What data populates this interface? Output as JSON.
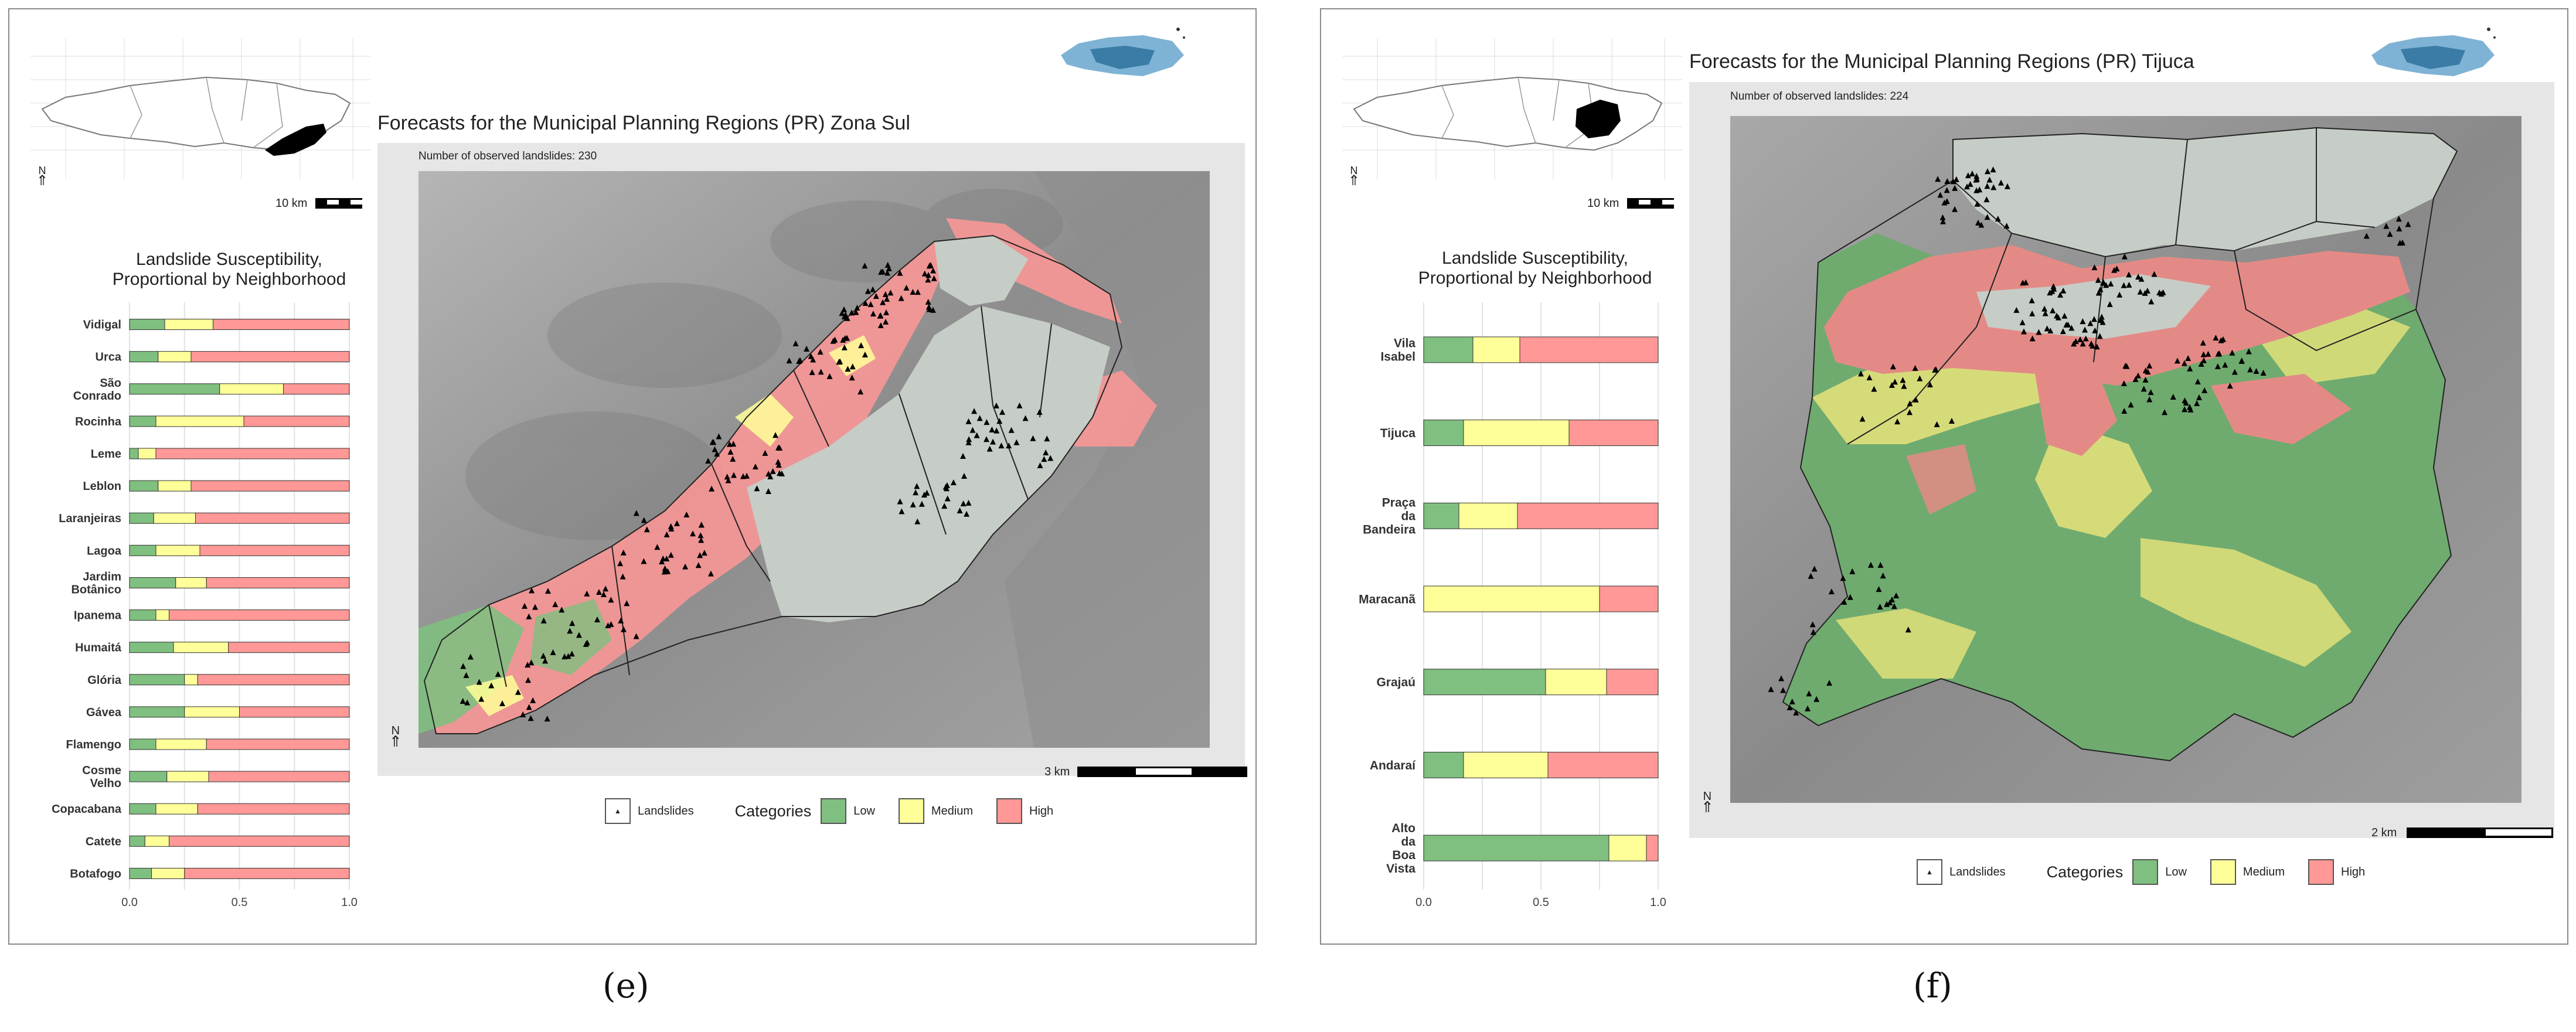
{
  "panels": [
    {
      "id": "e",
      "caption": "(e)",
      "inset_scale": "10 km",
      "map_title": "Forecasts for the Municipal Planning Regions (PR) Zona Sul",
      "observed": "Number of observed landslides: 230",
      "scale": "3 km",
      "north": "N",
      "chart_data": {
        "type": "bar",
        "title": "Landslide Susceptibility, Proportional by Neighborhood",
        "orientation": "horizontal",
        "stacked": true,
        "categories": [
          "Vidigal",
          "Urca",
          "São Conrado",
          "Rocinha",
          "Leme",
          "Leblon",
          "Laranjeiras",
          "Lagoa",
          "Jardim Botânico",
          "Ipanema",
          "Humaitá",
          "Glória",
          "Gávea",
          "Flamengo",
          "Cosme Velho",
          "Copacabana",
          "Catete",
          "Botafogo"
        ],
        "series": [
          {
            "name": "Low",
            "color": "#7fbf7f",
            "values": [
              0.16,
              0.13,
              0.41,
              0.12,
              0.04,
              0.13,
              0.11,
              0.12,
              0.21,
              0.12,
              0.2,
              0.25,
              0.25,
              0.12,
              0.17,
              0.12,
              0.07,
              0.1
            ]
          },
          {
            "name": "Medium",
            "color": "#ffff99",
            "values": [
              0.22,
              0.15,
              0.29,
              0.4,
              0.08,
              0.15,
              0.19,
              0.2,
              0.14,
              0.06,
              0.25,
              0.06,
              0.25,
              0.23,
              0.19,
              0.19,
              0.11,
              0.15
            ]
          },
          {
            "name": "High",
            "color": "#ff9896",
            "values": [
              0.62,
              0.72,
              0.3,
              0.48,
              0.88,
              0.72,
              0.7,
              0.68,
              0.65,
              0.82,
              0.55,
              0.69,
              0.5,
              0.65,
              0.64,
              0.69,
              0.82,
              0.75
            ]
          }
        ],
        "xlim": [
          0,
          1
        ],
        "xticks": [
          "0.0",
          "0.5",
          "1.0"
        ]
      }
    },
    {
      "id": "f",
      "caption": "(f)",
      "inset_scale": "10 km",
      "map_title": "Forecasts for the Municipal Planning Regions (PR) Tijuca",
      "observed": "Number of observed landslides: 224",
      "scale": "2 km",
      "north": "N",
      "chart_data": {
        "type": "bar",
        "title": "Landslide Susceptibility, Proportional by Neighborhood",
        "orientation": "horizontal",
        "stacked": true,
        "categories": [
          "Vila Isabel",
          "Tijuca",
          "Praça da Bandeira",
          "Maracanã",
          "Grajaú",
          "Andaraí",
          "Alto da Boa Vista"
        ],
        "series": [
          {
            "name": "Low",
            "color": "#7fbf7f",
            "values": [
              0.21,
              0.17,
              0.15,
              0.0,
              0.52,
              0.17,
              0.79
            ]
          },
          {
            "name": "Medium",
            "color": "#ffff99",
            "values": [
              0.2,
              0.45,
              0.25,
              0.75,
              0.26,
              0.36,
              0.16
            ]
          },
          {
            "name": "High",
            "color": "#ff9896",
            "values": [
              0.59,
              0.38,
              0.6,
              0.25,
              0.22,
              0.47,
              0.05
            ]
          }
        ],
        "xlim": [
          0,
          1
        ],
        "xticks": [
          "0.0",
          "0.5",
          "1.0"
        ]
      }
    }
  ],
  "legend": {
    "landslides": "Landslides",
    "categories": "Categories",
    "low": "Low",
    "medium": "Medium",
    "high": "High"
  },
  "colors": {
    "low": "#7fbf7f",
    "medium": "#ffff99",
    "high": "#ff9896",
    "terrain": "#9a9a9a",
    "urban": "#c6cdc6"
  },
  "zona_sul_labels": [
    "Vidigal",
    "Urca",
    "São Conrado",
    "Rocinha",
    "Leme",
    "Leblon",
    "Laranjeiras",
    "Lagoa",
    "Jardim Botânico",
    "Ipanema",
    "Humaitá",
    "Glória",
    "Gávea",
    "Flamengo",
    "Cosme Velho",
    "Copacabana",
    "Catete",
    "Botafogo"
  ],
  "tijuca_labels": [
    "Vila Isabel",
    "Tijuca",
    "Praça da Bandeira",
    "Maracanã",
    "Grajaú",
    "Andaraí",
    "Alto da Boa Vista"
  ]
}
